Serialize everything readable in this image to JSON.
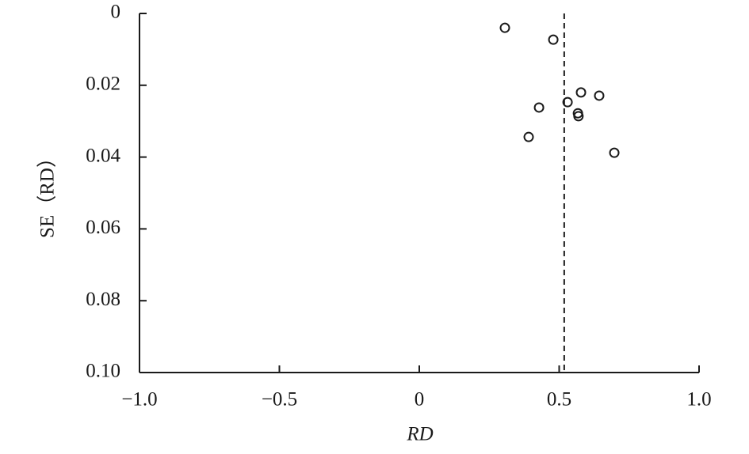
{
  "chart_data": {
    "type": "scatter",
    "xlabel": "RD",
    "ylabel": "SE（RD）",
    "x": [
      0.306,
      0.479,
      0.578,
      0.643,
      0.53,
      0.428,
      0.567,
      0.569,
      0.391,
      0.697
    ],
    "values": [
      0.004,
      0.0073,
      0.022,
      0.0229,
      0.0247,
      0.0262,
      0.0278,
      0.0286,
      0.0344,
      0.0388
    ],
    "color": "#1a1a1a",
    "ref_line_x": 0.518,
    "xlim": [
      -1.0,
      1.0
    ],
    "xticks": [
      {
        "value": -1.0,
        "label": "−1.0"
      },
      {
        "value": -0.5,
        "label": "−0.5"
      },
      0,
      0.5,
      {
        "value": 1.0,
        "label": "1.0"
      }
    ],
    "ylim": [
      0,
      0.1
    ],
    "yticks": [
      0,
      0.02,
      0.04,
      0.06,
      0.08,
      {
        "value": 0.1,
        "label": "0.10"
      }
    ],
    "y_inverted": true
  }
}
